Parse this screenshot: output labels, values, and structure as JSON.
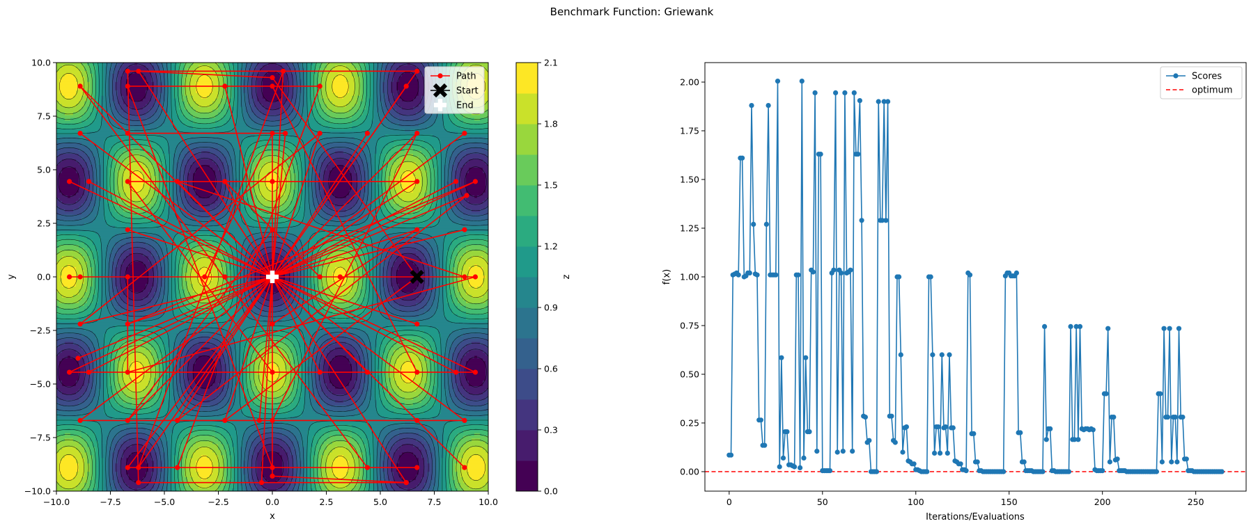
{
  "figure_title": "Benchmark Function: Griewank",
  "chart_data": [
    {
      "type": "contour",
      "xlabel": "x",
      "ylabel": "y",
      "xlim": [
        -10,
        10
      ],
      "ylim": [
        -10,
        10
      ],
      "x_ticks": [
        -10.0,
        -7.5,
        -5.0,
        -2.5,
        0.0,
        2.5,
        5.0,
        7.5,
        10.0
      ],
      "y_ticks": [
        -10.0,
        -7.5,
        -5.0,
        -2.5,
        0.0,
        2.5,
        5.0,
        7.5,
        10.0
      ],
      "tick_labels_x": [
        "−10.0",
        "−7.5",
        "−5.0",
        "−2.5",
        "0.0",
        "2.5",
        "5.0",
        "7.5",
        "10.0"
      ],
      "tick_labels_y": [
        "−10.0",
        "−7.5",
        "−5.0",
        "−2.5",
        "0.0",
        "2.5",
        "5.0",
        "7.5",
        "10.0"
      ],
      "function": "Griewank",
      "colormap": "viridis",
      "colorbar": {
        "label": "z",
        "levels": [
          0.0,
          0.15,
          0.3,
          0.45,
          0.6,
          0.75,
          0.9,
          1.05,
          1.2,
          1.35,
          1.5,
          1.65,
          1.8,
          1.95,
          2.1
        ],
        "ticks": [
          0.0,
          0.3,
          0.6,
          0.9,
          1.2,
          1.5,
          1.8,
          2.1
        ],
        "tick_labels": [
          "0.0",
          "0.3",
          "0.6",
          "0.9",
          "1.2",
          "1.5",
          "1.8",
          "2.1"
        ]
      },
      "path_color": "#ff0000",
      "path_points": [
        [
          6.7,
          0
        ],
        [
          0,
          0
        ],
        [
          6.7,
          4.45
        ],
        [
          0,
          4.45
        ],
        [
          -6.7,
          4.45
        ],
        [
          0,
          -4.45
        ],
        [
          6.7,
          -4.45
        ],
        [
          0,
          8.9
        ],
        [
          -6.7,
          8.9
        ],
        [
          0,
          -8.9
        ],
        [
          6.7,
          -8.9
        ],
        [
          -6.7,
          -8.9
        ],
        [
          0,
          0
        ],
        [
          -6.7,
          0
        ],
        [
          -6.7,
          -4.45
        ],
        [
          9.4,
          0
        ],
        [
          -9.4,
          0
        ],
        [
          0,
          0
        ],
        [
          3.14,
          0
        ],
        [
          -3.14,
          0
        ],
        [
          0,
          6.7
        ],
        [
          0,
          -6.7
        ],
        [
          6.7,
          6.7
        ],
        [
          -6.7,
          -6.7
        ],
        [
          0,
          2.2
        ],
        [
          0,
          -2.2
        ],
        [
          6.7,
          2.2
        ],
        [
          -6.7,
          -2.2
        ],
        [
          9.4,
          4.45
        ],
        [
          -9.4,
          -4.45
        ],
        [
          9.4,
          -4.45
        ],
        [
          -9.4,
          4.45
        ],
        [
          0,
          0
        ],
        [
          -2.2,
          8.9
        ],
        [
          2.2,
          8.9
        ],
        [
          -4.4,
          -8.9
        ],
        [
          4.4,
          -8.9
        ],
        [
          -8.9,
          8.9
        ],
        [
          8.9,
          -8.9
        ],
        [
          0,
          0
        ],
        [
          6.7,
          9.6
        ],
        [
          -6.7,
          9.6
        ],
        [
          -6.2,
          -9.6
        ],
        [
          6.2,
          -9.6
        ],
        [
          0,
          0
        ],
        [
          -8.9,
          0
        ],
        [
          8.9,
          0
        ],
        [
          -4.4,
          4.45
        ],
        [
          4.4,
          -4.45
        ],
        [
          0,
          0
        ],
        [
          6.7,
          0
        ],
        [
          -2.2,
          -6.7
        ],
        [
          2.2,
          6.7
        ],
        [
          -8.9,
          -2.2
        ],
        [
          8.9,
          2.2
        ],
        [
          0,
          0
        ],
        [
          6.2,
          8.9
        ],
        [
          -6.2,
          -8.9
        ],
        [
          0.5,
          9.6
        ],
        [
          -0.5,
          -9.6
        ],
        [
          0,
          0
        ],
        [
          4.4,
          6.7
        ],
        [
          -4.4,
          -6.7
        ],
        [
          9.0,
          3.8
        ],
        [
          -9.0,
          -3.8
        ],
        [
          0,
          0
        ],
        [
          -2.2,
          0
        ],
        [
          2.2,
          0
        ],
        [
          -2.2,
          4.45
        ],
        [
          2.2,
          -4.45
        ],
        [
          0,
          0
        ],
        [
          6.7,
          -2.2
        ],
        [
          -6.7,
          2.2
        ],
        [
          0,
          0
        ],
        [
          -8.9,
          6.7
        ],
        [
          8.9,
          -6.7
        ],
        [
          -8.9,
          -6.7
        ],
        [
          8.9,
          6.7
        ],
        [
          0,
          0
        ],
        [
          -0.6,
          -6.7
        ],
        [
          0.6,
          6.7
        ],
        [
          -6.7,
          6.7
        ],
        [
          6.7,
          -6.7
        ],
        [
          0,
          0
        ],
        [
          -8.5,
          4.45
        ],
        [
          8.5,
          -4.45
        ],
        [
          -8.5,
          -4.45
        ],
        [
          8.5,
          4.45
        ],
        [
          0,
          0
        ],
        [
          6.7,
          0
        ],
        [
          0,
          9.3
        ],
        [
          -6.2,
          9.6
        ],
        [
          6.2,
          -9.6
        ],
        [
          0,
          -9.3
        ],
        [
          0,
          0
        ]
      ],
      "start_marker": {
        "x": 6.7,
        "y": 0.0,
        "color": "#000000"
      },
      "end_marker": {
        "x": 0.0,
        "y": 0.0,
        "color": "#ffffff"
      },
      "legend": {
        "position": "top-right",
        "entries": [
          "Path",
          "Start",
          "End"
        ]
      }
    },
    {
      "type": "line",
      "xlabel": "Iterations/Evaluations",
      "ylabel": "f(x)",
      "xlim": [
        -13,
        277
      ],
      "ylim": [
        -0.1,
        2.1
      ],
      "x_ticks": [
        0,
        50,
        100,
        150,
        200,
        250
      ],
      "x_tick_labels": [
        "0",
        "50",
        "100",
        "150",
        "200",
        "250"
      ],
      "y_ticks": [
        0.0,
        0.25,
        0.5,
        0.75,
        1.0,
        1.25,
        1.5,
        1.75,
        2.0
      ],
      "y_tick_labels": [
        "0.00",
        "0.25",
        "0.50",
        "0.75",
        "1.00",
        "1.25",
        "1.50",
        "1.75",
        "2.00"
      ],
      "series": [
        {
          "name": "Scores",
          "color": "#1f77b4",
          "x_start": 0,
          "values": [
            0.085,
            0.085,
            1.01,
            1.015,
            1.02,
            1.01,
            1.61,
            1.61,
            1.0,
            1.005,
            1.02,
            1.02,
            1.88,
            1.27,
            1.015,
            1.01,
            0.265,
            0.265,
            0.135,
            0.135,
            1.27,
            1.88,
            1.01,
            1.01,
            1.01,
            1.01,
            2.005,
            0.025,
            0.585,
            0.07,
            0.205,
            0.205,
            0.035,
            0.035,
            0.03,
            0.025,
            1.01,
            1.01,
            0.02,
            2.005,
            0.07,
            0.585,
            0.205,
            0.205,
            1.035,
            1.025,
            1.945,
            0.105,
            1.63,
            1.63,
            0.005,
            0.005,
            0.005,
            0.005,
            0.005,
            1.02,
            1.035,
            1.945,
            0.1,
            1.035,
            1.02,
            0.105,
            1.945,
            1.02,
            1.025,
            1.035,
            0.105,
            1.945,
            1.63,
            1.63,
            1.905,
            1.29,
            0.285,
            0.28,
            0.15,
            0.16,
            0.0,
            0.0,
            0.0,
            0.0,
            1.9,
            1.29,
            1.29,
            1.9,
            1.29,
            1.9,
            0.285,
            0.285,
            0.16,
            0.15,
            1.0,
            1.0,
            0.6,
            0.1,
            0.225,
            0.23,
            0.055,
            0.05,
            0.04,
            0.04,
            0.01,
            0.01,
            0.005,
            0.0,
            0.0,
            0.0,
            0.0,
            1.0,
            1.0,
            0.6,
            0.095,
            0.23,
            0.23,
            0.095,
            0.6,
            0.225,
            0.23,
            0.095,
            0.6,
            0.225,
            0.225,
            0.055,
            0.05,
            0.04,
            0.04,
            0.01,
            0.01,
            0.005,
            1.02,
            1.01,
            0.195,
            0.195,
            0.05,
            0.05,
            0.005,
            0.005,
            0.0,
            0.0,
            0.0,
            0.0,
            0.0,
            0.0,
            0.0,
            0.0,
            0.0,
            0.0,
            0.0,
            0.0,
            1.005,
            1.02,
            1.02,
            1.005,
            1.005,
            1.005,
            1.02,
            0.2,
            0.2,
            0.05,
            0.05,
            0.005,
            0.005,
            0.005,
            0.005,
            0.0,
            0.0,
            0.0,
            0.0,
            0.0,
            0.0,
            0.745,
            0.165,
            0.22,
            0.22,
            0.005,
            0.005,
            0.0,
            0.0,
            0.0,
            0.0,
            0.0,
            0.0,
            0.0,
            0.0,
            0.745,
            0.165,
            0.165,
            0.745,
            0.165,
            0.745,
            0.22,
            0.215,
            0.22,
            0.22,
            0.215,
            0.22,
            0.215,
            0.01,
            0.005,
            0.005,
            0.005,
            0.005,
            0.4,
            0.4,
            0.735,
            0.05,
            0.28,
            0.28,
            0.06,
            0.065,
            0.005,
            0.005,
            0.005,
            0.005,
            0.0,
            0.0,
            0.0,
            0.0,
            0.0,
            0.0,
            0.0,
            0.0,
            0.0,
            0.0,
            0.0,
            0.0,
            0.0,
            0.0,
            0.0,
            0.0,
            0.0,
            0.4,
            0.4,
            0.05,
            0.735,
            0.28,
            0.28,
            0.735,
            0.05,
            0.28,
            0.28,
            0.05,
            0.735,
            0.28,
            0.28,
            0.065,
            0.065,
            0.005,
            0.005,
            0.005,
            0.0,
            0.0,
            0.0,
            0.0,
            0.0,
            0.0,
            0.0,
            0.0,
            0.0,
            0.0,
            0.0,
            0.0,
            0.0,
            0.0,
            0.0,
            0.0
          ]
        },
        {
          "name": "optimum",
          "color": "#ff0000",
          "dashed": true,
          "y": 0.0
        }
      ],
      "legend": {
        "position": "top-right",
        "entries": [
          "Scores",
          "optimum"
        ]
      }
    }
  ]
}
